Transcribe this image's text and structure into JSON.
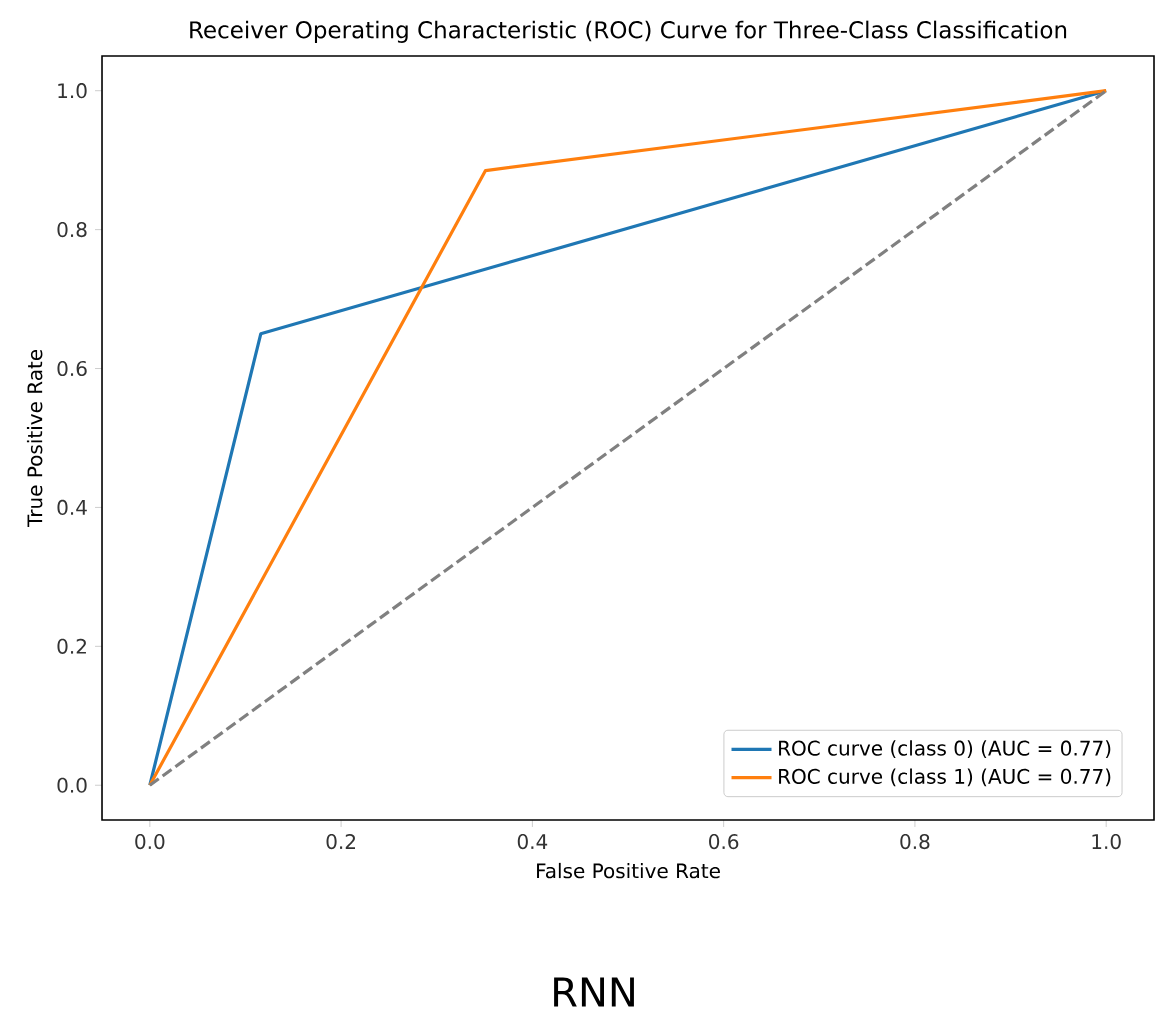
{
  "chart_data": {
    "type": "line",
    "title": "Receiver Operating Characteristic (ROC) Curve for Three-Class Classification",
    "xlabel": "False Positive Rate",
    "ylabel": "True Positive Rate",
    "series": [
      {
        "name": "ROC curve (class 0) (AUC = 0.77)",
        "color": "#1f77b4",
        "x": [
          0,
          0.116,
          1
        ],
        "values": [
          0,
          0.65,
          1
        ]
      },
      {
        "name": "ROC curve (class 1) (AUC = 0.77)",
        "color": "#ff7f0e",
        "x": [
          0,
          0.351,
          1
        ],
        "values": [
          0,
          0.885,
          1
        ]
      },
      {
        "color": "#808080",
        "line_style": "dashed",
        "x": [
          0,
          1
        ],
        "values": [
          0,
          1
        ]
      }
    ],
    "xlim": [
      -0.05,
      1.05
    ],
    "ylim": [
      -0.05,
      1.05
    ],
    "xticks": [
      {
        "value": 0,
        "label": "0.0"
      },
      {
        "value": 0.2,
        "label": "0.2"
      },
      {
        "value": 0.4,
        "label": "0.4"
      },
      {
        "value": 0.6,
        "label": "0.6"
      },
      {
        "value": 0.8,
        "label": "0.8"
      },
      {
        "value": 1,
        "label": "1.0"
      }
    ],
    "yticks": [
      {
        "value": 0,
        "label": "0.0"
      },
      {
        "value": 0.2,
        "label": "0.2"
      },
      {
        "value": 0.4,
        "label": "0.4"
      },
      {
        "value": 0.6,
        "label": "0.6"
      },
      {
        "value": 0.8,
        "label": "0.8"
      },
      {
        "value": 1,
        "label": "1.0"
      }
    ],
    "legend": "bottom right",
    "grid": false,
    "marker": "none",
    "annotations": [
      "RNN"
    ]
  }
}
